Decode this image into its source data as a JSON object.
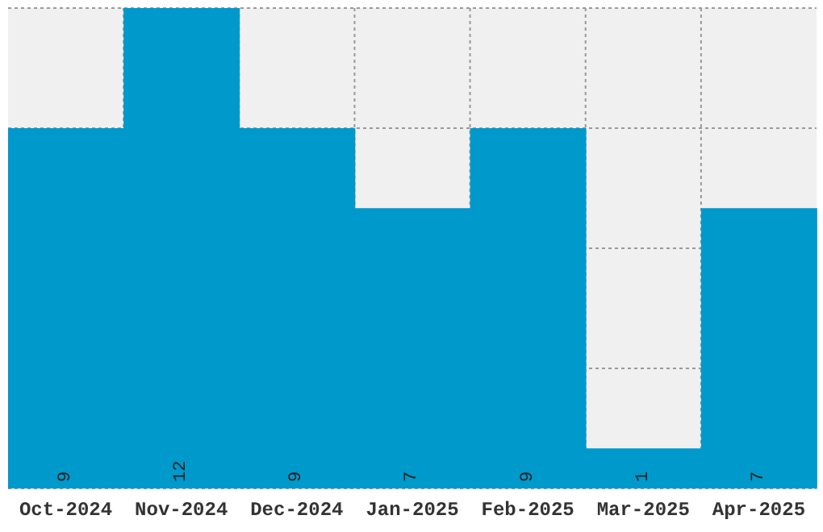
{
  "chart_data": {
    "type": "bar",
    "categories": [
      "Oct-2024",
      "Nov-2024",
      "Dec-2024",
      "Jan-2025",
      "Feb-2025",
      "Mar-2025",
      "Apr-2025"
    ],
    "values": [
      9,
      12,
      9,
      7,
      9,
      1,
      7
    ],
    "color": "#0099cc",
    "data_labels": true,
    "grid": true,
    "tick_labels": "x"
  }
}
